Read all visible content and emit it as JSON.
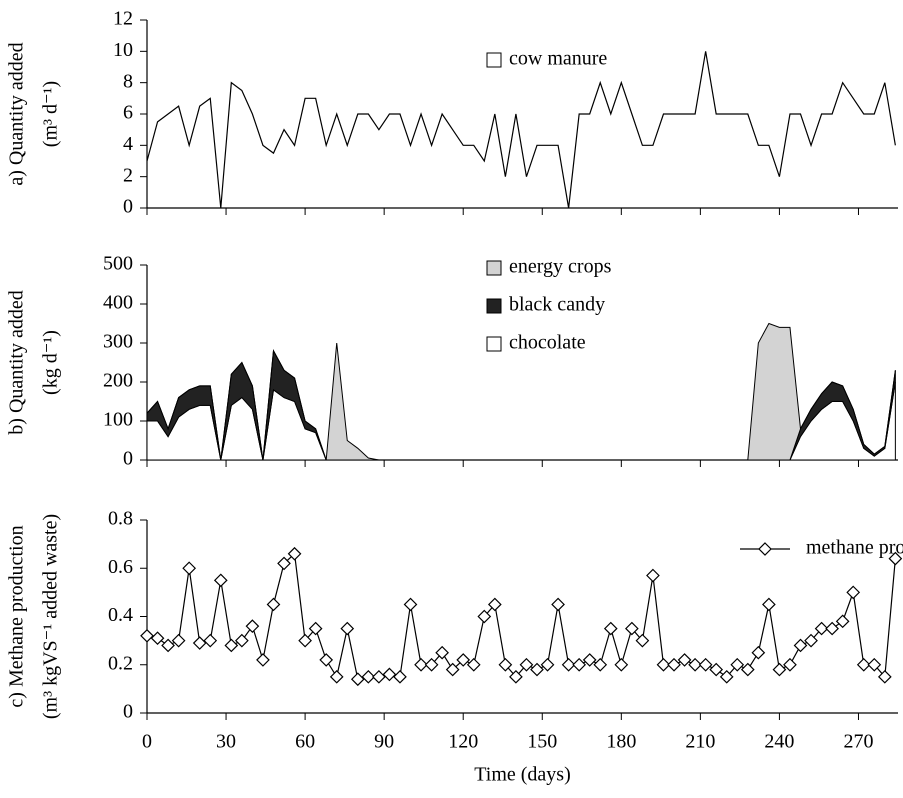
{
  "chart_data": [
    {
      "type": "line",
      "ylabel": [
        "a) Quantity added",
        "(m³ d⁻¹)"
      ],
      "x": [
        0,
        4,
        8,
        12,
        16,
        20,
        24,
        28,
        32,
        36,
        40,
        44,
        48,
        52,
        56,
        60,
        64,
        68,
        72,
        76,
        80,
        84,
        88,
        92,
        96,
        100,
        104,
        108,
        112,
        116,
        120,
        124,
        128,
        132,
        136,
        140,
        144,
        148,
        152,
        156,
        160,
        164,
        168,
        172,
        176,
        180,
        184,
        188,
        192,
        196,
        200,
        204,
        208,
        212,
        216,
        220,
        224,
        228,
        232,
        236,
        240,
        244,
        248,
        252,
        256,
        260,
        264,
        268,
        272,
        276,
        280,
        284
      ],
      "series": [
        {
          "name": "cow manure",
          "color": "#000000",
          "values": [
            3,
            5.5,
            6,
            6.5,
            4,
            6.5,
            7,
            0,
            8,
            7.5,
            6,
            4,
            3.5,
            5,
            4,
            7,
            7,
            4,
            6,
            4,
            6,
            6,
            5,
            6,
            6,
            4,
            6,
            4,
            6,
            5,
            4,
            4,
            3,
            6,
            2,
            6,
            2,
            4,
            4,
            4,
            0,
            6,
            6,
            8,
            6,
            8,
            6,
            4,
            4,
            6,
            6,
            6,
            6,
            10,
            6,
            6,
            6,
            6,
            4,
            4,
            2,
            6,
            6,
            4,
            6,
            6,
            8,
            7,
            6,
            6,
            8,
            4
          ]
        }
      ],
      "ylim": [
        0,
        12
      ],
      "yticks": [
        0,
        2,
        4,
        6,
        8,
        10,
        12
      ],
      "xlim": [
        0,
        285
      ]
    },
    {
      "type": "stacked_area",
      "ylabel": [
        "b) Quantity added",
        "(kg d⁻¹)"
      ],
      "x": [
        0,
        4,
        8,
        12,
        16,
        20,
        24,
        28,
        32,
        36,
        40,
        44,
        48,
        52,
        56,
        60,
        64,
        68,
        72,
        76,
        80,
        84,
        88,
        92,
        96,
        100,
        104,
        108,
        112,
        116,
        120,
        124,
        128,
        132,
        136,
        140,
        144,
        148,
        152,
        156,
        160,
        164,
        168,
        172,
        176,
        180,
        184,
        188,
        192,
        196,
        200,
        204,
        208,
        212,
        216,
        220,
        224,
        228,
        232,
        236,
        240,
        244,
        248,
        252,
        256,
        260,
        264,
        268,
        272,
        276,
        280,
        284
      ],
      "series": [
        {
          "name": "energy crops",
          "color": "#d3d3d3",
          "values": [
            0,
            0,
            0,
            0,
            0,
            0,
            0,
            0,
            0,
            0,
            0,
            0,
            0,
            0,
            0,
            0,
            0,
            0,
            300,
            50,
            30,
            5,
            0,
            0,
            0,
            0,
            0,
            0,
            0,
            0,
            0,
            0,
            0,
            0,
            0,
            0,
            0,
            0,
            0,
            0,
            0,
            0,
            0,
            0,
            0,
            0,
            0,
            0,
            0,
            0,
            0,
            0,
            0,
            0,
            0,
            0,
            0,
            0,
            300,
            350,
            340,
            340,
            0,
            0,
            0,
            0,
            0,
            0,
            0,
            0,
            0,
            0
          ]
        },
        {
          "name": "black candy",
          "color": "#222222",
          "values": [
            20,
            50,
            20,
            50,
            50,
            50,
            50,
            0,
            80,
            90,
            60,
            0,
            100,
            70,
            60,
            20,
            10,
            0,
            0,
            0,
            0,
            0,
            0,
            0,
            0,
            0,
            0,
            0,
            0,
            0,
            0,
            0,
            0,
            0,
            0,
            0,
            0,
            0,
            0,
            0,
            0,
            0,
            0,
            0,
            0,
            0,
            0,
            0,
            0,
            0,
            0,
            0,
            0,
            0,
            0,
            0,
            0,
            0,
            0,
            0,
            0,
            0,
            20,
            30,
            40,
            50,
            40,
            30,
            10,
            5,
            5,
            30
          ]
        },
        {
          "name": "chocolate",
          "color": "#ffffff",
          "values": [
            100,
            100,
            60,
            110,
            130,
            140,
            140,
            0,
            140,
            160,
            130,
            0,
            180,
            160,
            150,
            80,
            70,
            0,
            0,
            0,
            0,
            0,
            0,
            0,
            0,
            0,
            0,
            0,
            0,
            0,
            0,
            0,
            0,
            0,
            0,
            0,
            0,
            0,
            0,
            0,
            0,
            0,
            0,
            0,
            0,
            0,
            0,
            0,
            0,
            0,
            0,
            0,
            0,
            0,
            0,
            0,
            0,
            0,
            0,
            0,
            0,
            0,
            60,
            100,
            130,
            150,
            150,
            100,
            30,
            10,
            30,
            200
          ]
        }
      ],
      "ylim": [
        0,
        500
      ],
      "yticks": [
        0,
        100,
        200,
        300,
        400,
        500
      ],
      "xlim": [
        0,
        285
      ]
    },
    {
      "type": "line",
      "marker": "diamond",
      "ylabel": [
        "c) Methane production",
        "(m³ kgVS⁻¹ added waste)"
      ],
      "xlabel": "Time (days)",
      "x": [
        0,
        4,
        8,
        12,
        16,
        20,
        24,
        28,
        32,
        36,
        40,
        44,
        48,
        52,
        56,
        60,
        64,
        68,
        72,
        76,
        80,
        84,
        88,
        92,
        96,
        100,
        104,
        108,
        112,
        116,
        120,
        124,
        128,
        132,
        136,
        140,
        144,
        148,
        152,
        156,
        160,
        164,
        168,
        172,
        176,
        180,
        184,
        188,
        192,
        196,
        200,
        204,
        208,
        212,
        216,
        220,
        224,
        228,
        232,
        236,
        240,
        244,
        248,
        252,
        256,
        260,
        264,
        268,
        272,
        276,
        280,
        284
      ],
      "series": [
        {
          "name": "methane production",
          "color": "#000000",
          "values": [
            0.32,
            0.31,
            0.28,
            0.3,
            0.6,
            0.29,
            0.3,
            0.55,
            0.28,
            0.3,
            0.36,
            0.22,
            0.45,
            0.62,
            0.66,
            0.3,
            0.35,
            0.22,
            0.15,
            0.35,
            0.14,
            0.15,
            0.15,
            0.16,
            0.15,
            0.45,
            0.2,
            0.2,
            0.25,
            0.18,
            0.22,
            0.2,
            0.4,
            0.45,
            0.2,
            0.15,
            0.2,
            0.18,
            0.2,
            0.45,
            0.2,
            0.2,
            0.22,
            0.2,
            0.35,
            0.2,
            0.35,
            0.3,
            0.57,
            0.2,
            0.2,
            0.22,
            0.2,
            0.2,
            0.18,
            0.15,
            0.2,
            0.18,
            0.25,
            0.45,
            0.18,
            0.2,
            0.28,
            0.3,
            0.35,
            0.35,
            0.38,
            0.5,
            0.2,
            0.2,
            0.15,
            0.64
          ]
        }
      ],
      "ylim": [
        0,
        0.8
      ],
      "yticks": [
        0,
        0.2,
        0.4,
        0.6,
        0.8
      ],
      "xlim": [
        0,
        285
      ],
      "xticks": [
        0,
        30,
        60,
        90,
        120,
        150,
        180,
        210,
        240,
        270
      ]
    }
  ]
}
